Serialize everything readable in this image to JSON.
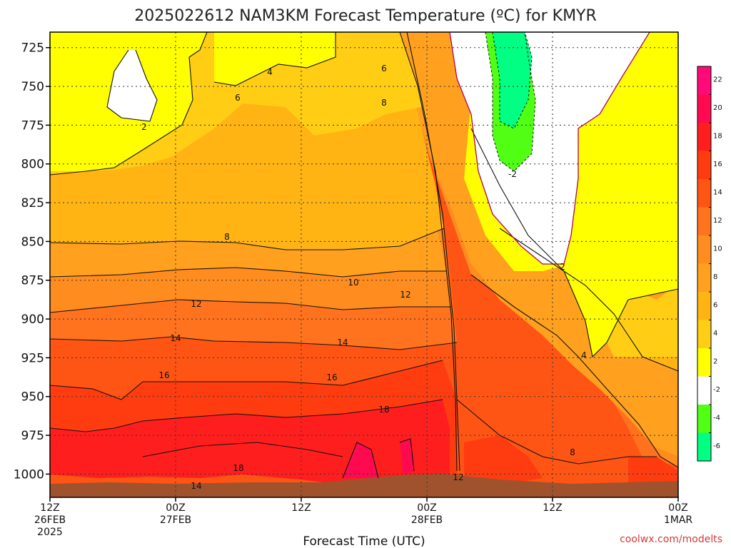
{
  "page": {
    "title": "2025022612 NAM3KM Forecast Temperature (ºC) for KMYR",
    "credit": "coolwx.com/modelts"
  },
  "chart_data": {
    "type": "heatmap",
    "title": "2025022612 NAM3KM Forecast Temperature (ºC) for KMYR",
    "xlabel": "Forecast Time (UTC)",
    "ylabel": "",
    "y_ticks": [
      "725",
      "750",
      "775",
      "800",
      "825",
      "850",
      "875",
      "900",
      "925",
      "950",
      "975",
      "1000"
    ],
    "ylim": [
      1015,
      715
    ],
    "x_ticks": [
      {
        "l1": "12Z",
        "l2": "26FEB",
        "l3": "2025"
      },
      {
        "l1": "00Z",
        "l2": "27FEB",
        "l3": ""
      },
      {
        "l1": "12Z",
        "l2": "",
        "l3": ""
      },
      {
        "l1": "00Z",
        "l2": "28FEB",
        "l3": ""
      },
      {
        "l1": "12Z",
        "l2": "",
        "l3": ""
      },
      {
        "l1": "00Z",
        "l2": "1MAR",
        "l3": ""
      }
    ],
    "colorbar": {
      "labels": [
        "22",
        "20",
        "18",
        "16",
        "14",
        "12",
        "10",
        "8",
        "6",
        "4",
        "2",
        "-2",
        "-4",
        "-6"
      ],
      "colors": [
        "#ff0a78",
        "#ff0a50",
        "#ff1e1e",
        "#ff3c0f",
        "#ff5514",
        "#ff731e",
        "#ff8c1e",
        "#ffa01e",
        "#ffb414",
        "#ffcd14",
        "#ffff00",
        "#ffffff",
        "#50ff14",
        "#00ff82"
      ]
    },
    "contour_labels": [
      "2",
      "4",
      "6",
      "6",
      "8",
      "8",
      "10",
      "12",
      "12",
      "14",
      "14",
      "16",
      "16",
      "18",
      "18",
      "12",
      "14",
      "-2",
      "2",
      "4",
      "8"
    ],
    "grid": true,
    "legend": "right colorbar"
  }
}
